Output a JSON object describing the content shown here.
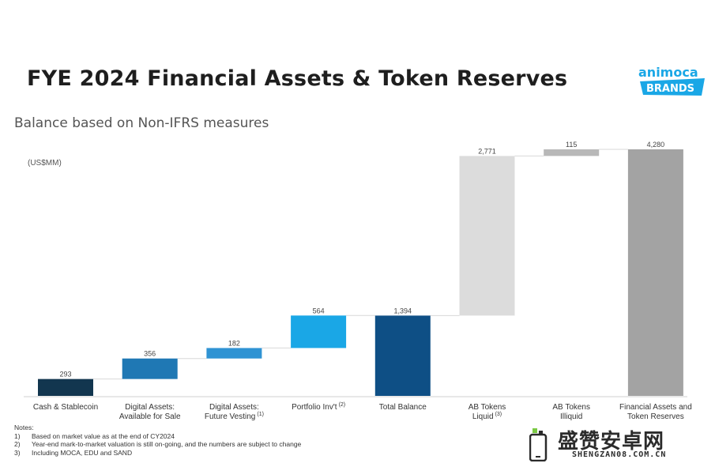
{
  "title": "FYE 2024 Financial Assets & Token Reserves",
  "subtitle": "Balance based on Non-IFRS measures",
  "unit_label": "(US$MM)",
  "logo": {
    "line1": "animoca",
    "line2": "BRANDS"
  },
  "chart_data": {
    "type": "bar",
    "subtype": "waterfall",
    "categories": [
      "Cash & Stablecoin",
      "Digital Assets: Available for Sale",
      "Digital Assets: Future Vesting",
      "Portfolio Inv't",
      "Total Balance",
      "AB Tokens Liquid",
      "AB Tokens Illiquid",
      "Financial Assets and Token Reserves"
    ],
    "category_lines": [
      [
        "Cash & Stablecoin"
      ],
      [
        "Digital Assets:",
        "Available for Sale"
      ],
      [
        "Digital Assets:",
        "Future Vesting"
      ],
      [
        "Portfolio Inv't"
      ],
      [
        "Total Balance"
      ],
      [
        "AB Tokens",
        "Liquid"
      ],
      [
        "AB Tokens",
        "Illiquid"
      ],
      [
        "Financial Assets and",
        "Token Reserves"
      ]
    ],
    "category_superscripts": [
      "",
      "",
      "(1)",
      "(2)",
      "",
      "(3)",
      "",
      ""
    ],
    "values": [
      293,
      356,
      182,
      564,
      1394,
      2771,
      115,
      4280
    ],
    "value_labels": [
      "293",
      "356",
      "182",
      "564",
      "1,394",
      "2,771",
      "115",
      "4,280"
    ],
    "is_total": [
      false,
      false,
      false,
      false,
      true,
      false,
      false,
      true
    ],
    "colors": [
      "#12364f",
      "#1f78b4",
      "#2f93d3",
      "#1aa7e6",
      "#0e4f85",
      "#dcdcdc",
      "#b8b8b8",
      "#a3a3a3"
    ],
    "ylim": [
      0,
      4280
    ],
    "grid": false,
    "legend": "none"
  },
  "notes": {
    "header": "Notes:",
    "items": [
      {
        "num": "1)",
        "text": "Based on market value as at the end of CY2024"
      },
      {
        "num": "2)",
        "text": "Year-end mark-to-market valuation is still on-going, and the numbers are subject to change"
      },
      {
        "num": "3)",
        "text": "Including MOCA, EDU and SAND"
      }
    ]
  },
  "watermark": {
    "text": "盛赞安卓网",
    "sub": "SHENGZAN08.COM.CN"
  }
}
